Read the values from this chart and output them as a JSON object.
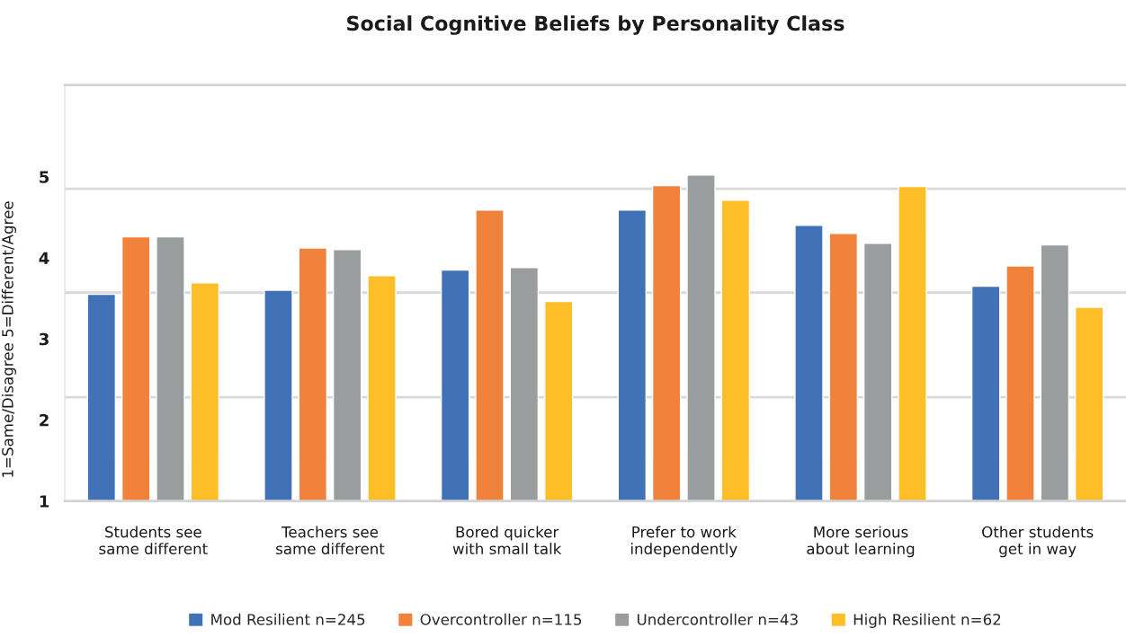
{
  "chart_data": {
    "type": "bar",
    "title": "Social Cognitive Beliefs by Personality Class",
    "ylabel": "1=Same/Disagree 5=Different/Agree",
    "categories": [
      "Students see\nsame different",
      "Teachers see\nsame different",
      "Bored quicker\nwith small talk",
      "Prefer to work\nindependently",
      "More serious\nabout learning",
      "Other students\nget in way"
    ],
    "series": [
      {
        "name": "Mod Resilient n=245",
        "color": "#4172b8",
        "values": [
          3.55,
          3.6,
          3.85,
          4.59,
          4.4,
          3.65
        ]
      },
      {
        "name": "Overcontroller n=115",
        "color": "#f0823c",
        "values": [
          4.26,
          4.12,
          4.59,
          4.89,
          4.3,
          3.9
        ]
      },
      {
        "name": "Undercontroller n=43",
        "color": "#9a9d9e",
        "values": [
          4.26,
          4.1,
          3.88,
          5.02,
          4.18,
          4.16
        ]
      },
      {
        "name": "High Resilient n=62",
        "color": "#fdbe28",
        "values": [
          3.69,
          3.78,
          3.46,
          4.71,
          4.88,
          3.39
        ]
      }
    ],
    "ylim": [
      1,
      6.13
    ],
    "yticks": [
      1,
      2,
      3,
      4,
      5
    ],
    "ref_lines": [
      {
        "axis": "y",
        "value": 2.28,
        "color": "#d9d9d9"
      },
      {
        "axis": "y",
        "value": 3.57,
        "color": "#d9d9d9"
      },
      {
        "axis": "y",
        "value": 4.85,
        "color": "#d9d9d9"
      }
    ],
    "legend": "bottom"
  }
}
